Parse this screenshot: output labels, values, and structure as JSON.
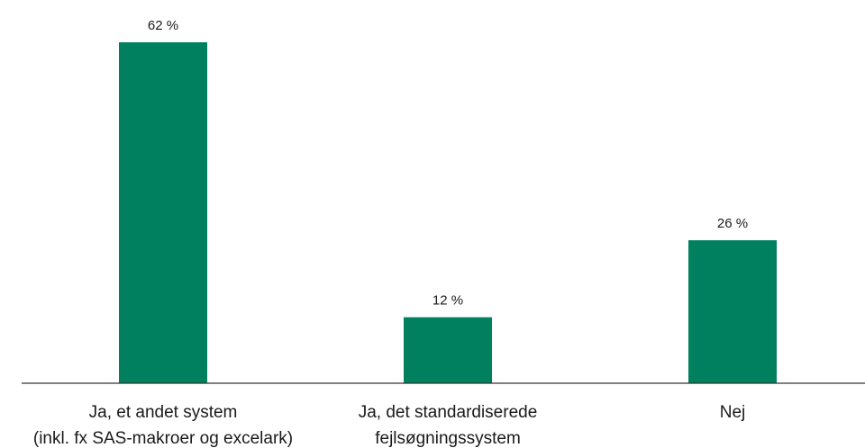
{
  "chart_data": {
    "type": "bar",
    "categories": [
      [
        "Ja, et andet system",
        "(inkl. fx SAS-makroer og excelark)"
      ],
      [
        "Ja, det standardiserede",
        "fejlsøgningssystem"
      ],
      [
        "Nej"
      ]
    ],
    "values": [
      62,
      12,
      26
    ],
    "value_labels": [
      "62 %",
      "12 %",
      "26 %"
    ],
    "unit": "%",
    "bar_color": "#00805e",
    "axis_color": "#333333",
    "ylim": [
      0,
      62
    ],
    "grid": false,
    "legend": "none"
  }
}
